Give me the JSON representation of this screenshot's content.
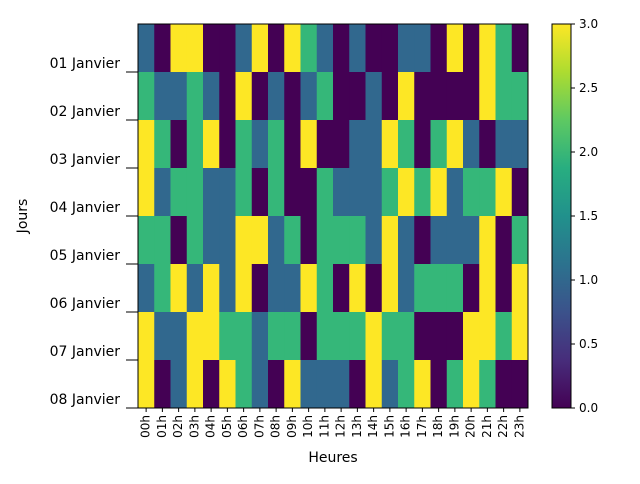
{
  "chart_data": {
    "type": "heatmap",
    "title": "",
    "xlabel": "Heures",
    "ylabel": "Jours",
    "x_categories": [
      "00h",
      "01h",
      "02h",
      "03h",
      "04h",
      "05h",
      "06h",
      "07h",
      "08h",
      "09h",
      "10h",
      "11h",
      "12h",
      "13h",
      "14h",
      "15h",
      "16h",
      "17h",
      "18h",
      "19h",
      "20h",
      "21h",
      "22h",
      "23h"
    ],
    "y_categories": [
      "01 Janvier",
      "02 Janvier",
      "03 Janvier",
      "04 Janvier",
      "05 Janvier",
      "06 Janvier",
      "07 Janvier",
      "08 Janvier"
    ],
    "values": [
      [
        1,
        0,
        3,
        3,
        0,
        0,
        1,
        3,
        0,
        3,
        2,
        1,
        0,
        1,
        0,
        0,
        1,
        1,
        0,
        3,
        0,
        3,
        2,
        0
      ],
      [
        2,
        1,
        1,
        2,
        1,
        0,
        3,
        0,
        1,
        0,
        1,
        2,
        0,
        0,
        1,
        0,
        3,
        0,
        0,
        0,
        0,
        3,
        2,
        2
      ],
      [
        3,
        2,
        0,
        2,
        3,
        0,
        2,
        1,
        2,
        0,
        3,
        0,
        0,
        1,
        1,
        3,
        2,
        0,
        2,
        3,
        1,
        0,
        1,
        1
      ],
      [
        3,
        1,
        2,
        2,
        1,
        1,
        2,
        0,
        2,
        0,
        0,
        2,
        1,
        1,
        1,
        2,
        3,
        2,
        3,
        1,
        2,
        2,
        3,
        0
      ],
      [
        2,
        2,
        0,
        2,
        1,
        1,
        3,
        3,
        1,
        2,
        0,
        2,
        2,
        2,
        1,
        3,
        1,
        0,
        1,
        1,
        1,
        3,
        0,
        2
      ],
      [
        1,
        2,
        3,
        1,
        3,
        1,
        3,
        0,
        1,
        1,
        3,
        2,
        0,
        3,
        0,
        3,
        1,
        2,
        2,
        2,
        0,
        3,
        0,
        3
      ],
      [
        3,
        1,
        1,
        3,
        3,
        2,
        2,
        1,
        2,
        2,
        0,
        2,
        2,
        2,
        3,
        2,
        2,
        0,
        0,
        0,
        3,
        3,
        2,
        3
      ],
      [
        3,
        0,
        1,
        3,
        0,
        3,
        2,
        1,
        0,
        3,
        1,
        1,
        1,
        0,
        3,
        1,
        2,
        3,
        0,
        2,
        3,
        2,
        0,
        0
      ]
    ],
    "colormap": "viridis",
    "vmin": 0,
    "vmax": 3,
    "colorbar_ticks": [
      "0.0",
      "0.5",
      "1.0",
      "1.5",
      "2.0",
      "2.5",
      "3.0"
    ],
    "colors": {
      "0": "#440154",
      "1": "#31688e",
      "2": "#35b779",
      "3": "#fde725"
    }
  }
}
